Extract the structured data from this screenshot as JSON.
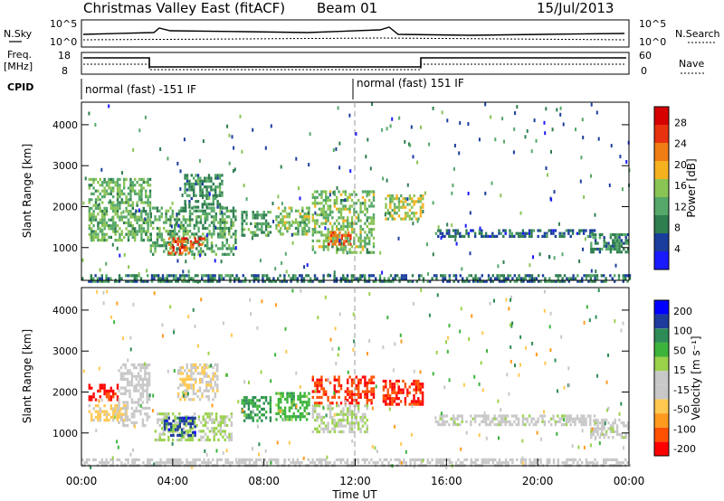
{
  "header": {
    "title": "Christmas Valley East (fitACF)",
    "beam": "Beam 01",
    "date": "15/Jul/2013"
  },
  "strips": {
    "nsky_label": "N.Sky",
    "nsearch_label": "N.Search",
    "noise_ticks": [
      "10^5",
      "10^0"
    ],
    "freq_label": "Freq.",
    "freq_unit": "[MHz]",
    "freq_ticks": [
      "18",
      "8"
    ],
    "nave_label": "Nave",
    "nave_ticks": [
      "60",
      "0"
    ],
    "cpid_label": "CPID",
    "cpid_1": "normal (fast) -151 IF",
    "cpid_2": "normal (fast) 151 IF"
  },
  "colors": {
    "power_scale": [
      "#1a1aff",
      "#1a3e9c",
      "#2e7d4f",
      "#55a869",
      "#8ac455",
      "#f5b21e",
      "#f07c14",
      "#e8320f",
      "#d60000"
    ],
    "velocity_scale": [
      "#ff0000",
      "#ff5000",
      "#ff9a1e",
      "#ffc850",
      "#c8c8c8",
      "#c8c8c8",
      "#9ad24b",
      "#3cb43c",
      "#2d8c55",
      "#1e3c9c",
      "#0000ff"
    ]
  },
  "chart_data": [
    {
      "type": "heatmap",
      "name": "power",
      "ylabel": "Slant Range [km]",
      "yticks": [
        "1000",
        "2000",
        "3000",
        "4000"
      ],
      "ylim": [
        200,
        4550
      ],
      "xlim": [
        0,
        24
      ],
      "colorbar_label": "Power [dB]",
      "colorbar_ticks": [
        "4",
        "8",
        "12",
        "16",
        "20",
        "24",
        "28"
      ],
      "colorbar_range": [
        0,
        31
      ],
      "regions": [
        {
          "t0": 0.3,
          "t1": 3.0,
          "r0": 1200,
          "r1": 2700,
          "p": 13
        },
        {
          "t0": 3.0,
          "t1": 6.8,
          "r0": 800,
          "r1": 2000,
          "p": 12
        },
        {
          "t0": 3.8,
          "t1": 5.4,
          "r0": 850,
          "r1": 1250,
          "p": 25
        },
        {
          "t0": 4.5,
          "t1": 6.2,
          "r0": 2000,
          "r1": 2800,
          "p": 10
        },
        {
          "t0": 7.0,
          "t1": 8.3,
          "r0": 1300,
          "r1": 1900,
          "p": 11
        },
        {
          "t0": 8.5,
          "t1": 10.0,
          "r0": 1300,
          "r1": 2000,
          "p": 14
        },
        {
          "t0": 10.1,
          "t1": 12.8,
          "r0": 900,
          "r1": 2400,
          "p": 14
        },
        {
          "t0": 10.8,
          "t1": 11.8,
          "r0": 1050,
          "r1": 1400,
          "p": 24
        },
        {
          "t0": 13.3,
          "t1": 15.0,
          "r0": 1700,
          "r1": 2300,
          "p": 16
        },
        {
          "t0": 15.5,
          "t1": 22.5,
          "r0": 1250,
          "r1": 1450,
          "p": 7
        },
        {
          "t0": 22.3,
          "t1": 24.0,
          "r0": 900,
          "r1": 1350,
          "p": 9
        },
        {
          "t0": 0.0,
          "t1": 24.0,
          "r0": 200,
          "r1": 350,
          "p": 8
        }
      ]
    },
    {
      "type": "heatmap",
      "name": "velocity",
      "ylabel": "Slant Range [km]",
      "yticks": [
        "1000",
        "2000",
        "3000",
        "4000"
      ],
      "ylim": [
        200,
        4550
      ],
      "xlim": [
        0,
        24
      ],
      "xlabel": "Time UT",
      "xticks": [
        "00:00",
        "04:00",
        "08:00",
        "12:00",
        "16:00",
        "20:00",
        "00:00"
      ],
      "colorbar_label": "Velocity [m s⁻¹]",
      "colorbar_ticks": [
        "200",
        "100",
        "50",
        "15",
        "-15",
        "-50",
        "-100",
        "-200"
      ],
      "colorbar_range": [
        -250,
        250
      ],
      "regions": [
        {
          "t0": 0.3,
          "t1": 1.6,
          "r0": 1800,
          "r1": 2200,
          "v": -220
        },
        {
          "t0": 0.3,
          "t1": 2.0,
          "r0": 1300,
          "r1": 1700,
          "v": -80
        },
        {
          "t0": 1.6,
          "t1": 3.0,
          "r0": 1200,
          "r1": 2700,
          "v": -10
        },
        {
          "t0": 3.2,
          "t1": 6.6,
          "r0": 800,
          "r1": 1500,
          "v": 30
        },
        {
          "t0": 3.6,
          "t1": 5.0,
          "r0": 950,
          "r1": 1400,
          "v": 180
        },
        {
          "t0": 4.2,
          "t1": 6.0,
          "r0": 1800,
          "r1": 2700,
          "v": -60
        },
        {
          "t0": 7.0,
          "t1": 8.3,
          "r0": 1300,
          "r1": 1900,
          "v": 120
        },
        {
          "t0": 8.5,
          "t1": 10.0,
          "r0": 1300,
          "r1": 2000,
          "v": 90
        },
        {
          "t0": 10.1,
          "t1": 12.8,
          "r0": 1700,
          "r1": 2400,
          "v": -200
        },
        {
          "t0": 10.1,
          "t1": 12.5,
          "r0": 1000,
          "r1": 1700,
          "v": 20
        },
        {
          "t0": 13.2,
          "t1": 15.0,
          "r0": 1700,
          "r1": 2300,
          "v": -210
        },
        {
          "t0": 15.5,
          "t1": 22.5,
          "r0": 1200,
          "r1": 1450,
          "v": 0
        },
        {
          "t0": 22.3,
          "t1": 24.0,
          "r0": 900,
          "r1": 1350,
          "v": 0
        },
        {
          "t0": 0.0,
          "t1": 24.0,
          "r0": 200,
          "r1": 380,
          "v": -30
        }
      ]
    }
  ]
}
